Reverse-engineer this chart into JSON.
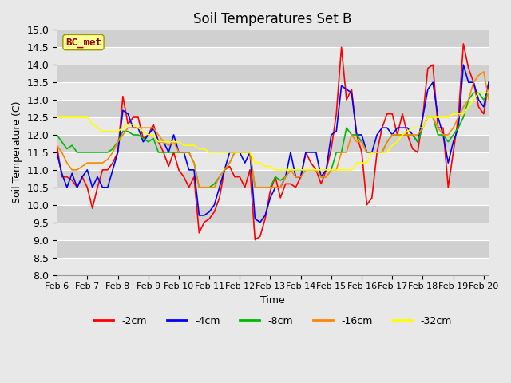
{
  "title": "Soil Temperatures Set B",
  "xlabel": "Time",
  "ylabel": "Soil Temperature (C)",
  "ylim": [
    8.0,
    15.0
  ],
  "yticks": [
    8.0,
    8.5,
    9.0,
    9.5,
    10.0,
    10.5,
    11.0,
    11.5,
    12.0,
    12.5,
    13.0,
    13.5,
    14.0,
    14.5,
    15.0
  ],
  "xtick_labels": [
    "Feb 6",
    "Feb 7",
    "Feb 8",
    "Feb 9",
    "Feb 10",
    "Feb 11",
    "Feb 12",
    "Feb 13",
    "Feb 14",
    "Feb 15",
    "Feb 16",
    "Feb 17",
    "Feb 18",
    "Feb 19",
    "Feb 20"
  ],
  "bg_color": "#e8e8e8",
  "plot_bg_color": "#dcdcdc",
  "band_color_light": "#e8e8e8",
  "band_color_dark": "#d0d0d0",
  "grid_color": "#ffffff",
  "label_box_text": "BC_met",
  "label_box_facecolor": "#ffff99",
  "label_box_edgecolor": "#999900",
  "label_box_textcolor": "#990000",
  "legend_labels": [
    "-2cm",
    "-4cm",
    "-8cm",
    "-16cm",
    "-32cm"
  ],
  "line_colors": [
    "#ff0000",
    "#0000ff",
    "#00bb00",
    "#ff8800",
    "#ffff00"
  ],
  "line_widths": [
    1.2,
    1.2,
    1.2,
    1.2,
    1.2
  ],
  "series": {
    "-2cm": [
      11.7,
      10.8,
      10.8,
      10.7,
      10.5,
      10.8,
      10.5,
      9.9,
      10.5,
      11.0,
      11.0,
      11.2,
      11.5,
      13.1,
      12.3,
      12.5,
      12.5,
      11.9,
      12.0,
      12.3,
      11.8,
      11.5,
      11.1,
      11.5,
      11.0,
      10.8,
      10.5,
      10.8,
      9.2,
      9.5,
      9.6,
      9.8,
      10.2,
      11.0,
      11.1,
      10.8,
      10.8,
      10.5,
      11.0,
      9.0,
      9.1,
      9.6,
      10.4,
      10.8,
      10.2,
      10.6,
      10.6,
      10.5,
      10.8,
      11.5,
      11.2,
      11.0,
      10.6,
      11.0,
      11.6,
      12.6,
      14.5,
      13.0,
      13.3,
      12.0,
      11.5,
      10.0,
      10.2,
      11.5,
      12.2,
      12.6,
      12.6,
      12.0,
      12.6,
      12.0,
      11.6,
      11.5,
      12.5,
      13.9,
      14.0,
      12.2,
      12.2,
      10.5,
      11.5,
      12.5,
      14.6,
      13.9,
      13.5,
      12.8,
      12.6,
      13.5
    ],
    "-4cm": [
      11.5,
      10.9,
      10.5,
      10.9,
      10.5,
      10.8,
      11.0,
      10.5,
      10.8,
      10.5,
      10.5,
      11.0,
      11.5,
      12.7,
      12.6,
      12.2,
      12.2,
      11.8,
      12.0,
      12.2,
      11.8,
      11.8,
      11.5,
      12.0,
      11.5,
      11.5,
      11.0,
      11.0,
      9.7,
      9.7,
      9.8,
      10.0,
      10.5,
      11.0,
      11.5,
      11.5,
      11.5,
      11.2,
      11.5,
      9.6,
      9.5,
      9.7,
      10.2,
      10.5,
      10.5,
      10.8,
      11.5,
      10.8,
      10.8,
      11.5,
      11.5,
      11.5,
      10.8,
      11.0,
      12.0,
      12.1,
      13.4,
      13.3,
      13.2,
      12.0,
      12.0,
      11.5,
      11.5,
      12.0,
      12.2,
      12.2,
      12.0,
      12.2,
      12.2,
      12.2,
      12.0,
      11.8,
      12.5,
      13.3,
      13.5,
      12.5,
      12.0,
      11.2,
      11.8,
      12.2,
      14.0,
      13.5,
      13.5,
      13.0,
      12.8,
      13.5
    ],
    "-8cm": [
      12.0,
      11.8,
      11.6,
      11.7,
      11.5,
      11.5,
      11.5,
      11.5,
      11.5,
      11.5,
      11.5,
      11.6,
      11.8,
      12.1,
      12.1,
      12.0,
      12.0,
      11.9,
      11.8,
      11.9,
      11.5,
      11.5,
      11.5,
      11.5,
      11.5,
      11.5,
      11.5,
      11.2,
      10.5,
      10.5,
      10.5,
      10.6,
      10.8,
      11.0,
      11.2,
      11.5,
      11.5,
      11.5,
      11.5,
      10.5,
      10.5,
      10.5,
      10.5,
      10.8,
      10.7,
      10.8,
      11.0,
      11.0,
      11.0,
      11.0,
      11.0,
      11.0,
      10.8,
      10.8,
      11.0,
      11.5,
      11.5,
      12.2,
      12.0,
      12.0,
      11.8,
      11.5,
      11.5,
      11.5,
      11.5,
      11.8,
      12.0,
      12.0,
      12.0,
      12.0,
      12.0,
      11.8,
      12.2,
      12.5,
      12.5,
      12.0,
      12.0,
      11.8,
      12.0,
      12.2,
      12.5,
      13.0,
      13.2,
      13.2,
      13.0,
      13.2
    ],
    "-16cm": [
      11.7,
      11.5,
      11.2,
      11.0,
      11.0,
      11.1,
      11.2,
      11.2,
      11.2,
      11.2,
      11.3,
      11.5,
      11.8,
      12.0,
      12.2,
      12.2,
      12.2,
      12.2,
      12.2,
      12.2,
      12.0,
      11.8,
      11.7,
      11.8,
      11.5,
      11.5,
      11.5,
      11.2,
      10.5,
      10.5,
      10.5,
      10.5,
      10.8,
      11.0,
      11.2,
      11.5,
      11.5,
      11.5,
      11.5,
      10.5,
      10.5,
      10.5,
      10.5,
      10.5,
      10.5,
      10.8,
      11.0,
      10.8,
      10.8,
      11.0,
      11.0,
      11.0,
      10.8,
      10.8,
      11.0,
      11.0,
      11.5,
      11.5,
      12.0,
      11.8,
      11.8,
      11.5,
      11.5,
      11.5,
      11.5,
      11.8,
      12.0,
      12.0,
      12.0,
      12.0,
      12.0,
      12.0,
      12.2,
      12.5,
      12.5,
      12.2,
      12.0,
      12.0,
      12.2,
      12.5,
      12.8,
      13.0,
      13.5,
      13.7,
      13.8,
      13.0
    ],
    "-32cm": [
      12.5,
      12.5,
      12.5,
      12.5,
      12.5,
      12.5,
      12.5,
      12.3,
      12.2,
      12.1,
      12.1,
      12.1,
      12.1,
      12.2,
      12.3,
      12.3,
      12.2,
      12.1,
      12.0,
      12.0,
      11.8,
      11.8,
      11.8,
      11.8,
      11.8,
      11.7,
      11.7,
      11.7,
      11.6,
      11.6,
      11.5,
      11.5,
      11.5,
      11.5,
      11.5,
      11.5,
      11.5,
      11.5,
      11.5,
      11.2,
      11.2,
      11.1,
      11.1,
      11.0,
      11.0,
      11.0,
      11.0,
      11.0,
      11.0,
      11.0,
      11.0,
      11.0,
      11.0,
      11.0,
      11.0,
      11.0,
      11.0,
      11.0,
      11.0,
      11.2,
      11.2,
      11.2,
      11.5,
      11.5,
      11.5,
      11.5,
      11.7,
      11.8,
      12.0,
      12.1,
      12.2,
      12.2,
      12.2,
      12.5,
      12.5,
      12.5,
      12.5,
      12.5,
      12.6,
      12.6,
      12.6,
      12.8,
      13.0,
      13.2,
      13.2,
      13.2
    ]
  },
  "n_points": 86,
  "x_tick_positions": [
    0,
    6,
    12,
    18,
    24,
    30,
    36,
    42,
    48,
    54,
    60,
    66,
    72,
    78,
    84
  ]
}
